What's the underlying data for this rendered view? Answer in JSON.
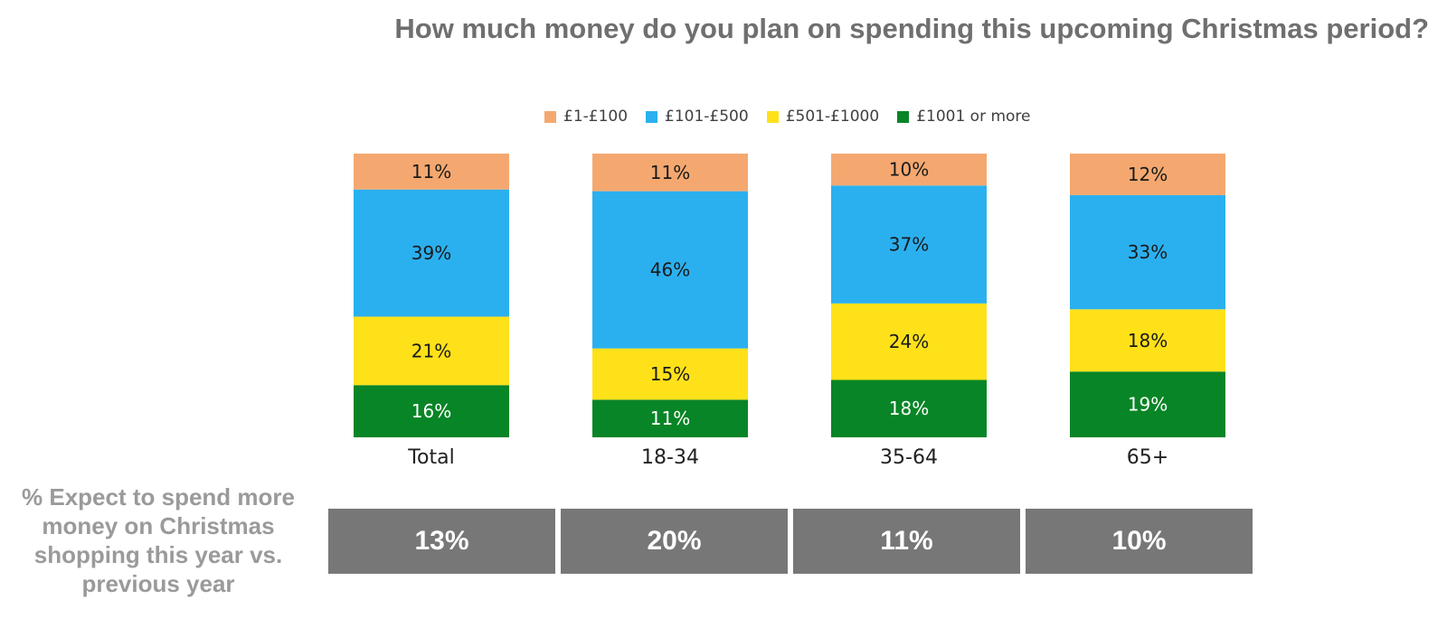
{
  "title": "How much money do you plan on spending this upcoming Christmas period?",
  "chart_data": {
    "type": "bar",
    "stacked": true,
    "categories": [
      "Total",
      "18-34",
      "35-64",
      "65+"
    ],
    "series": [
      {
        "name": "£1-£100",
        "color": "#F4A870",
        "values": [
          11,
          11,
          10,
          12
        ],
        "labels": [
          "11%",
          "11%",
          "10%",
          "12%"
        ]
      },
      {
        "name": "£101-£500",
        "color": "#2BB0EF",
        "values": [
          39,
          46,
          37,
          33
        ],
        "labels": [
          "39%",
          "46%",
          "37%",
          "33%"
        ]
      },
      {
        "name": "£501-£1000",
        "color": "#FFE11A",
        "values": [
          21,
          15,
          24,
          18
        ],
        "labels": [
          "21%",
          "15%",
          "24%",
          "18%"
        ]
      },
      {
        "name": "£1001 or more",
        "color": "#088526",
        "values": [
          16,
          11,
          18,
          19
        ],
        "labels": [
          "16%",
          "11%",
          "18%",
          "19%"
        ]
      }
    ],
    "legend_position": "top",
    "grid": false
  },
  "expect": {
    "label": "% Expect to spend more money on Christmas shopping this year vs. previous year",
    "values": [
      "13%",
      "20%",
      "11%",
      "10%"
    ]
  }
}
